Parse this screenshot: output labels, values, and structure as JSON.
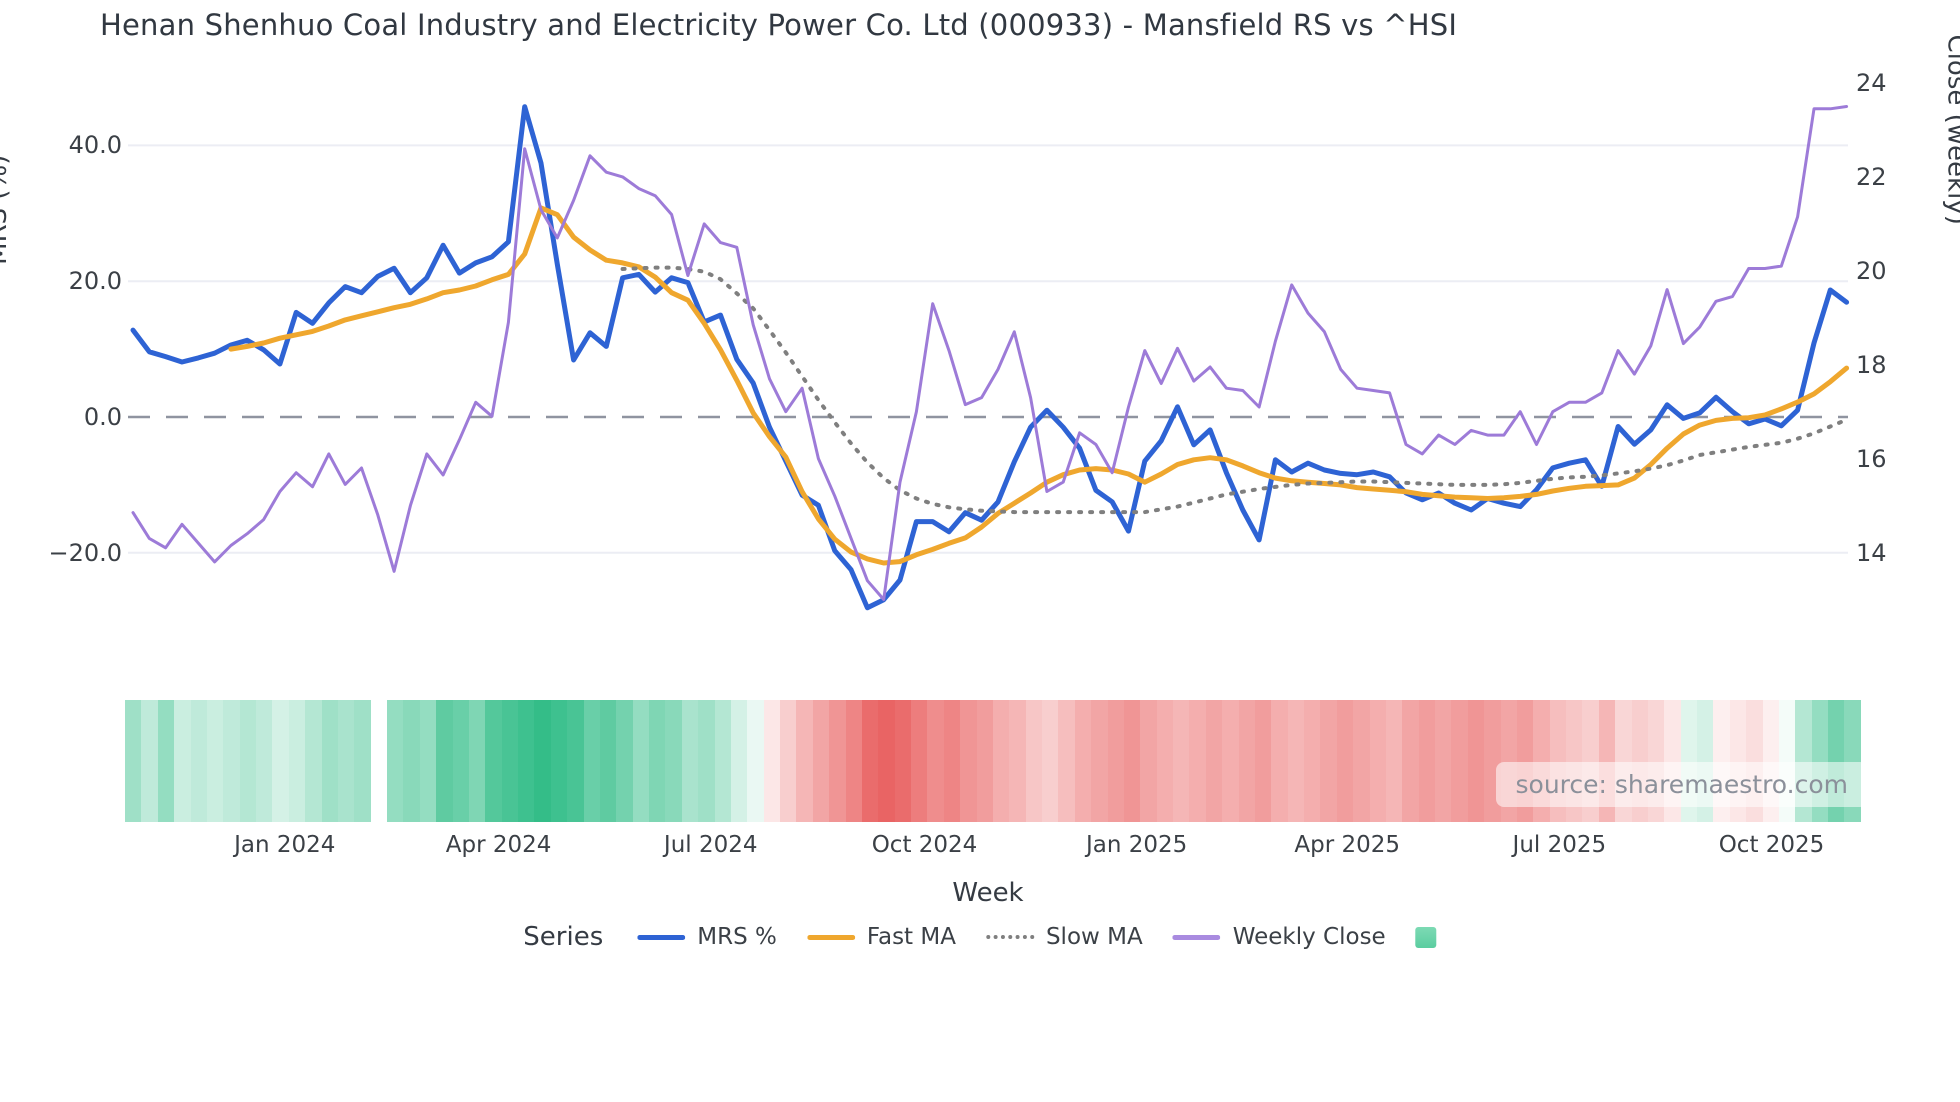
{
  "title": "Henan Shenhuo Coal Industry and Electricity Power Co. Ltd (000933) - Mansfield RS vs ^HSI",
  "watermark": "source: sharemaestro.com",
  "legend": {
    "title": "Series",
    "items": [
      {
        "label": "MRS %",
        "color": "#2e63d4",
        "style": "line"
      },
      {
        "label": "Fast MA",
        "color": "#efa72e",
        "style": "line"
      },
      {
        "label": "Slow MA",
        "color": "#7f7f7f",
        "style": "dotted"
      },
      {
        "label": "Weekly Close",
        "color": "#a98be0",
        "style": "line"
      },
      {
        "label": "",
        "color": "#5bcda0",
        "style": "square"
      }
    ]
  },
  "axes": {
    "left": {
      "label": "MRS (%)",
      "ticks": [
        {
          "v": 40,
          "label": "40.0"
        },
        {
          "v": 20,
          "label": "20.0"
        },
        {
          "v": 0,
          "label": "0.0"
        },
        {
          "v": -20,
          "label": "−20.0"
        }
      ]
    },
    "right": {
      "label": "Close (weekly)",
      "ticks": [
        {
          "v": 24,
          "label": "24"
        },
        {
          "v": 22,
          "label": "22"
        },
        {
          "v": 20,
          "label": "20"
        },
        {
          "v": 18,
          "label": "18"
        },
        {
          "v": 16,
          "label": "16"
        },
        {
          "v": 14,
          "label": "14"
        }
      ]
    },
    "x": {
      "label": "Week",
      "ticks": [
        {
          "week": 9.3,
          "label": "Jan 2024"
        },
        {
          "week": 22.4,
          "label": "Apr 2024"
        },
        {
          "week": 35.4,
          "label": "Jul 2024"
        },
        {
          "week": 48.5,
          "label": "Oct 2024"
        },
        {
          "week": 61.5,
          "label": "Jan 2025"
        },
        {
          "week": 74.4,
          "label": "Apr 2025"
        },
        {
          "week": 87.4,
          "label": "Jul 2025"
        },
        {
          "week": 100.4,
          "label": "Oct 2025"
        }
      ]
    }
  },
  "chart_data": {
    "type": "line",
    "x_unit": "week_index",
    "n_weeks": 106,
    "left_axis_range": [
      -30,
      47
    ],
    "right_axis_range": [
      13,
      24
    ],
    "grid": "horizontal",
    "zero_line": true,
    "series": [
      {
        "name": "MRS %",
        "axis": "left",
        "color": "#2e63d4",
        "width": 5,
        "dash": null,
        "values": [
          12.8,
          9.6,
          8.9,
          8.1,
          8.7,
          9.4,
          10.6,
          11.3,
          9.9,
          7.8,
          15.4,
          13.8,
          16.8,
          19.2,
          18.3,
          20.7,
          21.9,
          18.3,
          20.5,
          25.3,
          21.2,
          22.7,
          23.6,
          25.8,
          45.7,
          37.4,
          22.5,
          8.4,
          12.4,
          10.4,
          20.5,
          21.0,
          18.4,
          20.5,
          19.8,
          14.0,
          15.0,
          8.5,
          5.0,
          -1.5,
          -6.5,
          -11.5,
          -13.0,
          -19.7,
          -22.5,
          -28.1,
          -26.9,
          -24.0,
          -15.4,
          -15.4,
          -16.9,
          -14.1,
          -15.2,
          -12.5,
          -6.6,
          -1.5,
          1.0,
          -1.5,
          -4.6,
          -10.8,
          -12.5,
          -16.8,
          -6.5,
          -3.5,
          1.5,
          -4.1,
          -1.9,
          -8.2,
          -13.7,
          -18.1,
          -6.3,
          -8.1,
          -6.8,
          -7.8,
          -8.3,
          -8.5,
          -8.1,
          -8.8,
          -11.2,
          -12.2,
          -11.2,
          -12.7,
          -13.7,
          -12.0,
          -12.7,
          -13.2,
          -10.7,
          -7.5,
          -6.8,
          -6.3,
          -10.2,
          -1.4,
          -4.0,
          -1.9,
          1.8,
          -0.2,
          0.6,
          2.9,
          0.8,
          -1.0,
          -0.3,
          -1.3,
          1.0,
          10.9,
          18.7,
          16.9
        ]
      },
      {
        "name": "Fast MA",
        "axis": "left",
        "color": "#efa72e",
        "width": 5,
        "dash": null,
        "values": [
          null,
          null,
          null,
          null,
          null,
          null,
          10.0,
          10.4,
          10.9,
          11.6,
          12.1,
          12.6,
          13.4,
          14.3,
          14.9,
          15.5,
          16.1,
          16.6,
          17.4,
          18.3,
          18.7,
          19.3,
          20.2,
          21.0,
          24.0,
          30.8,
          29.8,
          26.5,
          24.6,
          23.1,
          22.7,
          22.1,
          20.6,
          18.3,
          17.2,
          13.8,
          9.9,
          5.4,
          0.6,
          -2.9,
          -5.9,
          -11.0,
          -15.0,
          -18.0,
          -19.9,
          -20.9,
          -21.5,
          -21.3,
          -20.3,
          -19.5,
          -18.6,
          -17.8,
          -16.2,
          -14.2,
          -12.7,
          -11.2,
          -9.6,
          -8.5,
          -7.8,
          -7.6,
          -7.8,
          -8.4,
          -9.6,
          -8.4,
          -7.0,
          -6.3,
          -6.0,
          -6.3,
          -7.2,
          -8.2,
          -9.0,
          -9.4,
          -9.6,
          -9.8,
          -10.0,
          -10.4,
          -10.6,
          -10.8,
          -11.0,
          -11.4,
          -11.6,
          -11.8,
          -11.9,
          -12.0,
          -11.9,
          -11.7,
          -11.4,
          -10.9,
          -10.5,
          -10.2,
          -10.1,
          -10.0,
          -9.0,
          -7.0,
          -4.6,
          -2.5,
          -1.2,
          -0.5,
          -0.2,
          -0.1,
          0.3,
          1.2,
          2.2,
          3.4,
          5.2,
          7.2
        ]
      },
      {
        "name": "Slow MA",
        "axis": "left",
        "color": "#7f7f7f",
        "width": 4,
        "dash": "2 9",
        "values": [
          null,
          null,
          null,
          null,
          null,
          null,
          null,
          null,
          null,
          null,
          null,
          null,
          null,
          null,
          null,
          null,
          null,
          null,
          null,
          null,
          null,
          null,
          null,
          null,
          null,
          null,
          null,
          null,
          null,
          null,
          21.8,
          21.9,
          22.0,
          22.0,
          21.8,
          21.4,
          20.3,
          18.2,
          16.0,
          12.8,
          9.5,
          6.0,
          2.5,
          -0.8,
          -3.9,
          -6.7,
          -9.0,
          -10.8,
          -12.0,
          -12.8,
          -13.3,
          -13.6,
          -13.8,
          -13.9,
          -14.0,
          -14.0,
          -14.0,
          -14.0,
          -14.0,
          -14.0,
          -14.0,
          -14.0,
          -14.0,
          -13.6,
          -13.2,
          -12.6,
          -12.0,
          -11.4,
          -11.0,
          -10.6,
          -10.3,
          -10.0,
          -9.8,
          -9.7,
          -9.6,
          -9.5,
          -9.5,
          -9.6,
          -9.7,
          -9.8,
          -9.9,
          -10.0,
          -10.0,
          -10.0,
          -9.9,
          -9.7,
          -9.4,
          -9.1,
          -8.9,
          -8.8,
          -8.6,
          -8.3,
          -8.0,
          -7.6,
          -7.1,
          -6.4,
          -5.6,
          -5.2,
          -4.8,
          -4.4,
          -4.1,
          -3.8,
          -3.2,
          -2.4,
          -1.4,
          -0.4
        ]
      },
      {
        "name": "Weekly Close",
        "axis": "right",
        "color": "#9d7bd8",
        "width": 3,
        "dash": null,
        "values": [
          14.85,
          14.3,
          14.1,
          14.6,
          14.2,
          13.8,
          14.15,
          14.4,
          14.7,
          15.3,
          15.7,
          15.4,
          16.1,
          15.45,
          15.8,
          14.8,
          13.6,
          15.0,
          16.1,
          15.65,
          16.4,
          17.2,
          16.9,
          18.9,
          22.6,
          21.3,
          20.7,
          21.5,
          22.45,
          22.1,
          22.0,
          21.75,
          21.6,
          21.2,
          19.9,
          21.0,
          20.6,
          20.5,
          18.85,
          17.7,
          17.0,
          17.5,
          16.0,
          15.2,
          14.3,
          13.4,
          13.0,
          15.5,
          17.0,
          19.3,
          18.3,
          17.15,
          17.3,
          17.9,
          18.7,
          17.3,
          15.3,
          15.5,
          16.55,
          16.3,
          15.7,
          17.1,
          18.3,
          17.6,
          18.35,
          17.65,
          17.95,
          17.5,
          17.45,
          17.1,
          18.5,
          19.7,
          19.1,
          18.7,
          17.9,
          17.5,
          17.45,
          17.4,
          16.3,
          16.1,
          16.5,
          16.3,
          16.6,
          16.5,
          16.5,
          17.0,
          16.3,
          17.0,
          17.2,
          17.2,
          17.4,
          18.3,
          17.8,
          18.4,
          19.6,
          18.45,
          18.8,
          19.35,
          19.45,
          20.05,
          20.05,
          20.1,
          21.15,
          23.45,
          23.45,
          23.5
        ]
      }
    ],
    "heatmap": {
      "description": "weekly relative-strength heat strip, green positive to red negative, null = missing week",
      "color_positive": "#29ba82",
      "color_negative": "#e85c5c",
      "values": [
        0.45,
        0.3,
        0.5,
        0.25,
        0.3,
        0.25,
        0.3,
        0.35,
        0.3,
        0.2,
        0.25,
        0.35,
        0.45,
        0.4,
        0.45,
        null,
        0.5,
        0.55,
        0.5,
        0.75,
        0.7,
        0.6,
        0.8,
        0.85,
        0.9,
        0.95,
        0.9,
        0.85,
        0.7,
        0.75,
        0.65,
        0.5,
        0.6,
        0.55,
        0.4,
        0.45,
        0.35,
        0.2,
        0.1,
        -0.15,
        -0.3,
        -0.45,
        -0.55,
        -0.65,
        -0.75,
        -0.9,
        -0.95,
        -0.9,
        -0.8,
        -0.7,
        -0.75,
        -0.65,
        -0.6,
        -0.5,
        -0.45,
        -0.35,
        -0.3,
        -0.4,
        -0.5,
        -0.55,
        -0.6,
        -0.65,
        -0.55,
        -0.5,
        -0.45,
        -0.5,
        -0.55,
        -0.5,
        -0.55,
        -0.6,
        -0.5,
        -0.45,
        -0.5,
        -0.55,
        -0.6,
        -0.55,
        -0.5,
        -0.45,
        -0.55,
        -0.6,
        -0.55,
        -0.6,
        -0.65,
        -0.6,
        -0.55,
        -0.6,
        -0.5,
        -0.4,
        -0.35,
        -0.3,
        -0.45,
        -0.25,
        -0.3,
        -0.25,
        -0.15,
        0.15,
        0.2,
        -0.1,
        -0.15,
        -0.2,
        -0.1,
        0.05,
        0.35,
        0.5,
        0.65,
        0.55
      ]
    }
  }
}
